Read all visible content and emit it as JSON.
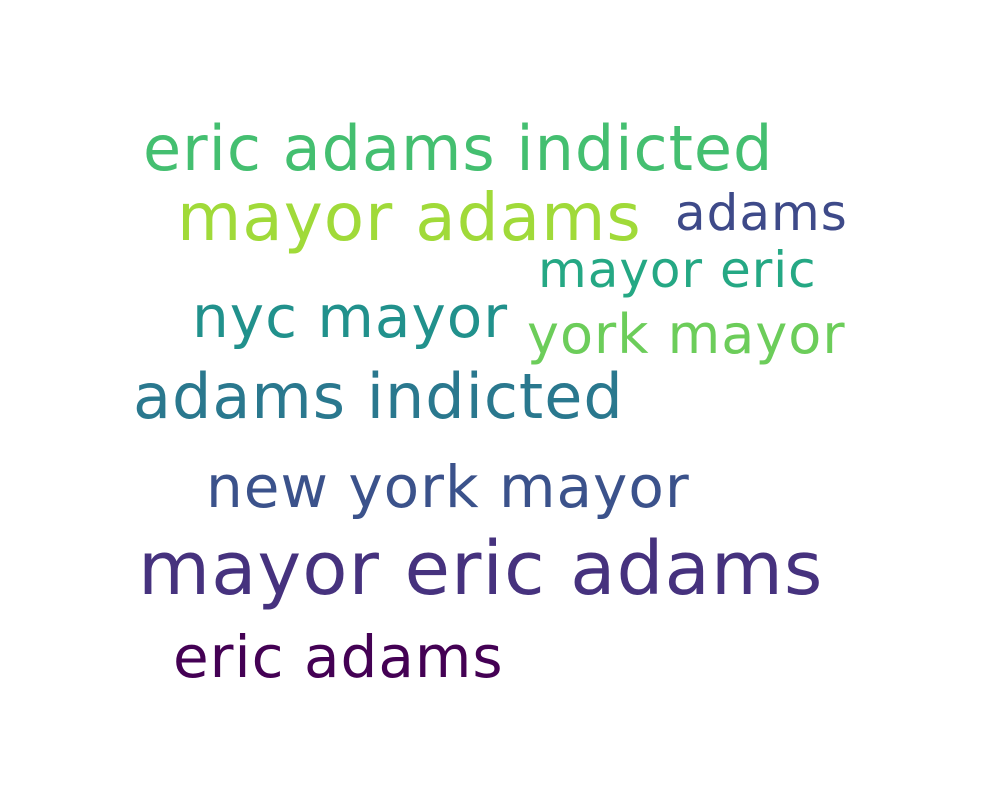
{
  "words": [
    {
      "text": "eric adams indicted",
      "color": "#44bf70"
    },
    {
      "text": "mayor adams",
      "color": "#a0da39"
    },
    {
      "text": "adams",
      "color": "#3e4a89"
    },
    {
      "text": "mayor eric",
      "color": "#25a884"
    },
    {
      "text": "nyc mayor",
      "color": "#21918c"
    },
    {
      "text": "york mayor",
      "color": "#6ccd5a"
    },
    {
      "text": "adams indicted",
      "color": "#2a788e"
    },
    {
      "text": "new york mayor",
      "color": "#3b528b"
    },
    {
      "text": "mayor eric adams",
      "color": "#46327e"
    },
    {
      "text": "eric adams",
      "color": "#440154"
    }
  ]
}
